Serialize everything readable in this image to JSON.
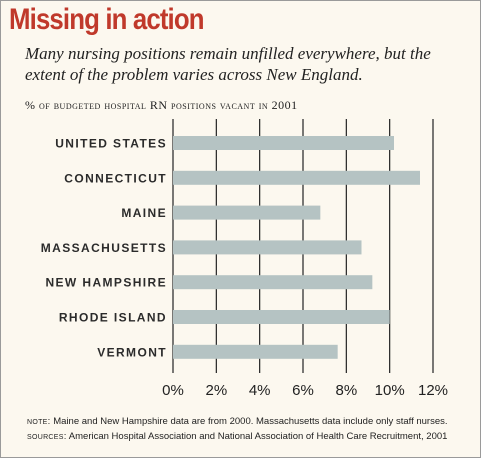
{
  "title": "Missing in action",
  "subtitle": "Many nursing positions remain unfilled everywhere, but the extent of the problem varies across New England.",
  "notes": {
    "note_label": "note:",
    "note_text": "Maine and New Hampshire data are from 2000. Massachusetts data include only staff nurses.",
    "sources_label": "sources:",
    "sources_text": "American Hospital Association and National Association of Health Care Recruitment, 2001"
  },
  "colors": {
    "title": "#c0392b",
    "bar": "#b5c3c3",
    "background": "#fcf8ef",
    "grid": "#222222"
  },
  "chart_data": {
    "type": "bar",
    "orientation": "horizontal",
    "title": "",
    "xlabel": "% of budgeted hospital RN positions vacant in 2001",
    "ylabel": "",
    "categories": [
      "UNITED STATES",
      "CONNECTICUT",
      "MAINE",
      "MASSACHUSETTS",
      "NEW HAMPSHIRE",
      "RHODE ISLAND",
      "VERMONT"
    ],
    "values": [
      10.2,
      11.4,
      6.8,
      8.7,
      9.2,
      10.0,
      7.6
    ],
    "xlim": [
      0,
      12
    ],
    "xticks": [
      0,
      2,
      4,
      6,
      8,
      10,
      12
    ],
    "xtick_labels": [
      "0%",
      "2%",
      "4%",
      "6%",
      "8%",
      "10%",
      "12%"
    ],
    "grid": true,
    "legend": "none"
  }
}
